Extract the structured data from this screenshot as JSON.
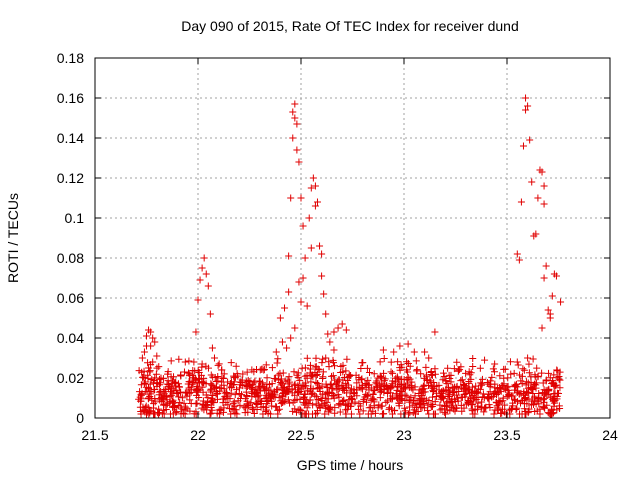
{
  "chart_data": {
    "type": "scatter",
    "title": "Day 090 of 2015, Rate Of TEC Index for receiver dund",
    "xlabel": "GPS time / hours",
    "ylabel": "ROTI / TECUs",
    "xlim": [
      21.5,
      24
    ],
    "ylim": [
      0,
      0.18
    ],
    "xticks": [
      "21.5",
      "22",
      "22.5",
      "23",
      "23.5",
      "24"
    ],
    "yticks": [
      "0",
      "0.02",
      "0.04",
      "0.06",
      "0.08",
      "0.1",
      "0.12",
      "0.14",
      "0.16",
      "0.18"
    ],
    "xtick_values": [
      21.5,
      22,
      22.5,
      23,
      23.5,
      24
    ],
    "ytick_values": [
      0,
      0.02,
      0.04,
      0.06,
      0.08,
      0.1,
      0.12,
      0.14,
      0.16,
      0.18
    ],
    "grid": true,
    "marker": "+",
    "color": "#e00000",
    "series": [
      {
        "name": "ROTI",
        "points": [
          [
            21.73,
            0.03
          ],
          [
            21.74,
            0.033
          ],
          [
            21.75,
            0.036
          ],
          [
            21.76,
            0.044
          ],
          [
            21.77,
            0.043
          ],
          [
            21.78,
            0.04
          ],
          [
            21.79,
            0.038
          ],
          [
            21.75,
            0.041
          ],
          [
            21.77,
            0.036
          ],
          [
            21.8,
            0.031
          ],
          [
            21.78,
            0.028
          ],
          [
            21.76,
            0.025
          ],
          [
            21.82,
            0.02
          ],
          [
            22.0,
            0.059
          ],
          [
            22.01,
            0.069
          ],
          [
            22.02,
            0.075
          ],
          [
            22.03,
            0.08
          ],
          [
            22.04,
            0.072
          ],
          [
            22.05,
            0.066
          ],
          [
            22.06,
            0.052
          ],
          [
            21.99,
            0.043
          ],
          [
            22.07,
            0.035
          ],
          [
            21.98,
            0.028
          ],
          [
            22.02,
            0.027
          ],
          [
            22.08,
            0.03
          ],
          [
            22.4,
            0.05
          ],
          [
            22.42,
            0.055
          ],
          [
            22.44,
            0.063
          ],
          [
            22.44,
            0.081
          ],
          [
            22.45,
            0.11
          ],
          [
            22.46,
            0.14
          ],
          [
            22.46,
            0.153
          ],
          [
            22.47,
            0.157
          ],
          [
            22.47,
            0.15
          ],
          [
            22.48,
            0.147
          ],
          [
            22.48,
            0.134
          ],
          [
            22.49,
            0.128
          ],
          [
            22.5,
            0.11
          ],
          [
            22.51,
            0.096
          ],
          [
            22.52,
            0.08
          ],
          [
            22.51,
            0.07
          ],
          [
            22.53,
            0.056
          ],
          [
            22.49,
            0.068
          ],
          [
            22.5,
            0.058
          ],
          [
            22.47,
            0.045
          ],
          [
            22.45,
            0.04
          ],
          [
            22.43,
            0.035
          ],
          [
            22.41,
            0.038
          ],
          [
            22.38,
            0.033
          ],
          [
            22.54,
            0.1
          ],
          [
            22.55,
            0.115
          ],
          [
            22.56,
            0.12
          ],
          [
            22.57,
            0.116
          ],
          [
            22.58,
            0.108
          ],
          [
            22.57,
            0.106
          ],
          [
            22.55,
            0.085
          ],
          [
            22.59,
            0.086
          ],
          [
            22.6,
            0.082
          ],
          [
            22.6,
            0.071
          ],
          [
            22.61,
            0.062
          ],
          [
            22.62,
            0.052
          ],
          [
            22.63,
            0.042
          ],
          [
            22.64,
            0.038
          ],
          [
            22.66,
            0.043
          ],
          [
            22.68,
            0.045
          ],
          [
            22.7,
            0.047
          ],
          [
            22.72,
            0.044
          ],
          [
            22.66,
            0.034
          ],
          [
            22.62,
            0.03
          ],
          [
            22.9,
            0.034
          ],
          [
            22.95,
            0.033
          ],
          [
            22.98,
            0.036
          ],
          [
            23.02,
            0.037
          ],
          [
            23.05,
            0.033
          ],
          [
            23.1,
            0.033
          ],
          [
            23.12,
            0.03
          ],
          [
            23.15,
            0.043
          ],
          [
            23.55,
            0.082
          ],
          [
            23.56,
            0.079
          ],
          [
            23.57,
            0.108
          ],
          [
            23.58,
            0.136
          ],
          [
            23.59,
            0.154
          ],
          [
            23.59,
            0.16
          ],
          [
            23.6,
            0.156
          ],
          [
            23.61,
            0.139
          ],
          [
            23.62,
            0.118
          ],
          [
            23.63,
            0.091
          ],
          [
            23.64,
            0.092
          ],
          [
            23.65,
            0.11
          ],
          [
            23.66,
            0.124
          ],
          [
            23.67,
            0.123
          ],
          [
            23.68,
            0.116
          ],
          [
            23.68,
            0.107
          ],
          [
            23.69,
            0.076
          ],
          [
            23.68,
            0.07
          ],
          [
            23.7,
            0.054
          ],
          [
            23.71,
            0.052
          ],
          [
            23.72,
            0.061
          ],
          [
            23.73,
            0.072
          ],
          [
            23.74,
            0.071
          ],
          [
            23.76,
            0.058
          ],
          [
            23.71,
            0.05
          ],
          [
            23.67,
            0.045
          ],
          [
            23.6,
            0.03
          ],
          [
            23.55,
            0.028
          ]
        ]
      }
    ],
    "background_band": {
      "x_range": [
        21.71,
        23.76
      ],
      "y_range": [
        0.002,
        0.03
      ],
      "center": 0.012,
      "point_count": 1400,
      "seed": 90
    }
  }
}
